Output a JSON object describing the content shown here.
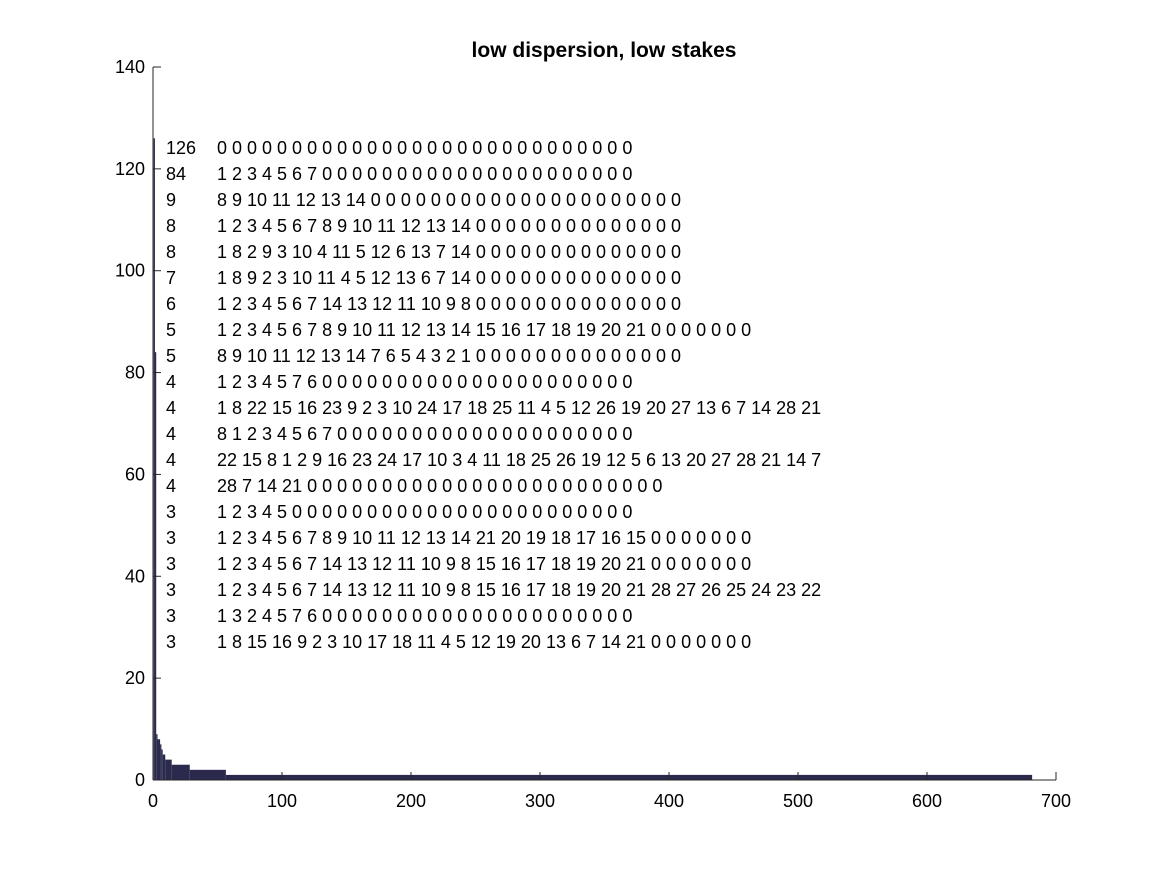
{
  "chart_data": {
    "type": "bar",
    "title": "low dispersion, low stakes",
    "xlabel": "",
    "ylabel": "",
    "xlim": [
      0,
      700
    ],
    "ylim": [
      0,
      140
    ],
    "xticks": [
      0,
      100,
      200,
      300,
      400,
      500,
      600,
      700
    ],
    "yticks": [
      0,
      20,
      40,
      60,
      80,
      100,
      120,
      140
    ],
    "grid": false,
    "bar_color": "#2b2a4c",
    "segments": [
      {
        "from": 1,
        "to": 1,
        "value": 126
      },
      {
        "from": 2,
        "to": 2,
        "value": 84
      },
      {
        "from": 3,
        "to": 3,
        "value": 9
      },
      {
        "from": 4,
        "to": 5,
        "value": 8
      },
      {
        "from": 6,
        "to": 6,
        "value": 7
      },
      {
        "from": 7,
        "to": 7,
        "value": 6
      },
      {
        "from": 8,
        "to": 9,
        "value": 5
      },
      {
        "from": 10,
        "to": 14,
        "value": 4
      },
      {
        "from": 15,
        "to": 28,
        "value": 3
      },
      {
        "from": 29,
        "to": 56,
        "value": 2
      },
      {
        "from": 57,
        "to": 681,
        "value": 1
      }
    ],
    "annotations": [
      {
        "count": "126",
        "sequence": "0 0 0 0 0 0 0 0 0 0 0 0 0 0 0 0 0 0 0 0 0 0 0 0 0 0 0 0"
      },
      {
        "count": "84",
        "sequence": "1 2 3 4 5 6 7 0 0 0 0 0 0 0 0 0 0 0 0 0 0 0 0 0 0 0 0 0"
      },
      {
        "count": "9",
        "sequence": "8 9 10 11 12 13 14 0 0 0 0 0 0 0 0 0 0 0 0 0 0 0 0 0 0 0 0 0"
      },
      {
        "count": "8",
        "sequence": "1 2 3 4 5 6 7 8 9 10 11 12 13 14 0 0 0 0 0 0 0 0 0 0 0 0 0 0"
      },
      {
        "count": "8",
        "sequence": "1 8 2 9 3 10 4 11 5 12 6 13 7 14 0 0 0 0 0 0 0 0 0 0 0 0 0 0"
      },
      {
        "count": "7",
        "sequence": "1 8 9 2 3 10 11 4 5 12 13 6 7 14 0 0 0 0 0 0 0 0 0 0 0 0 0 0"
      },
      {
        "count": "6",
        "sequence": "1 2 3 4 5 6 7 14 13 12 11 10 9 8 0 0 0 0 0 0 0 0 0 0 0 0 0 0"
      },
      {
        "count": "5",
        "sequence": "1 2 3 4 5 6 7 8 9 10 11 12 13 14 15 16 17 18 19 20 21 0 0 0 0 0 0 0"
      },
      {
        "count": "5",
        "sequence": "8 9 10 11 12 13 14 7 6 5 4 3 2 1 0 0 0 0 0 0 0 0 0 0 0 0 0 0"
      },
      {
        "count": "4",
        "sequence": "1 2 3 4 5 7 6 0 0 0 0 0 0 0 0 0 0 0 0 0 0 0 0 0 0 0 0 0"
      },
      {
        "count": "4",
        "sequence": "1 8 22 15 16 23 9 2 3 10 24 17 18 25 11 4 5 12 26 19 20 27 13 6 7 14 28 21"
      },
      {
        "count": "4",
        "sequence": "8 1 2 3 4 5 6 7 0 0 0 0 0 0 0 0 0 0 0 0 0 0 0 0 0 0 0 0"
      },
      {
        "count": "4",
        "sequence": "22 15 8 1 2 9 16 23 24 17 10 3 4 11 18 25 26 19 12 5 6 13 20 27 28 21 14 7"
      },
      {
        "count": "4",
        "sequence": "28 7 14 21 0 0 0 0 0 0 0 0 0 0 0 0 0 0 0 0 0 0 0 0 0 0 0 0"
      },
      {
        "count": "3",
        "sequence": "1 2 3 4 5 0 0 0 0 0 0 0 0 0 0 0 0 0 0 0 0 0 0 0 0 0 0 0"
      },
      {
        "count": "3",
        "sequence": "1 2 3 4 5 6 7 8 9 10 11 12 13 14 21 20 19 18 17 16 15 0 0 0 0 0 0 0"
      },
      {
        "count": "3",
        "sequence": "1 2 3 4 5 6 7 14 13 12 11 10 9 8 15 16 17 18 19 20 21 0 0 0 0 0 0 0"
      },
      {
        "count": "3",
        "sequence": "1 2 3 4 5 6 7 14 13 12 11 10 9 8 15 16 17 18 19 20 21 28 27 26 25 24 23 22"
      },
      {
        "count": "3",
        "sequence": "1 3 2 4 5 7 6 0 0 0 0 0 0 0 0 0 0 0 0 0 0 0 0 0 0 0 0 0"
      },
      {
        "count": "3",
        "sequence": "1 8 15 16 9 2 3 10 17 18 11 4 5 12 19 20 13 6 7 14 21 0 0 0 0 0 0 0"
      }
    ]
  }
}
